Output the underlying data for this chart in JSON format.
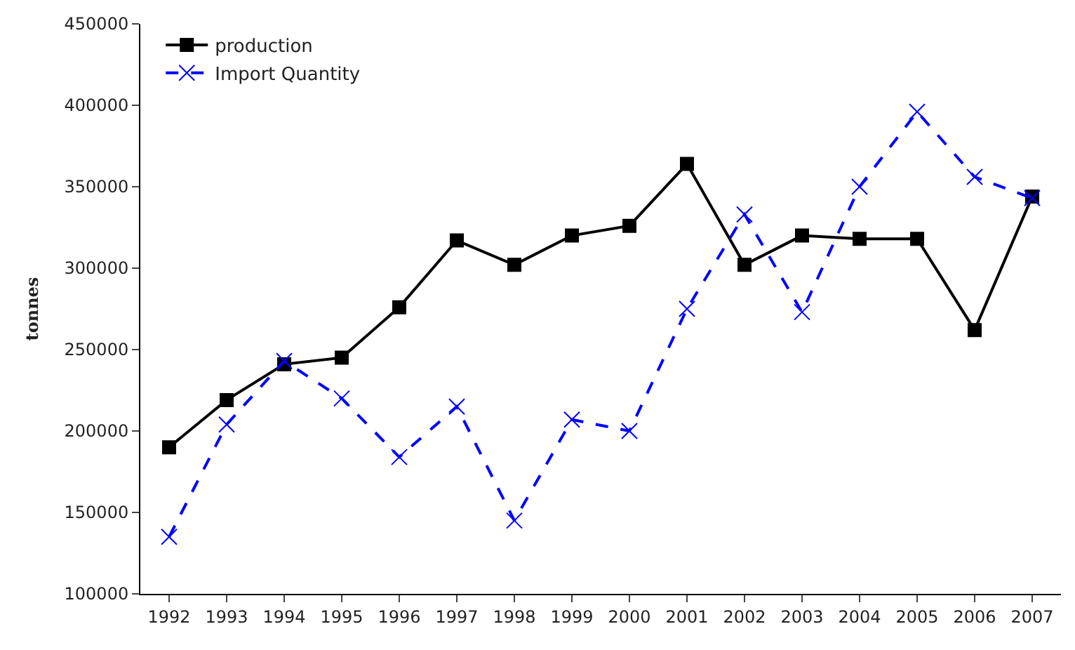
{
  "chart_data": {
    "type": "line",
    "categories": [
      "1992",
      "1993",
      "1994",
      "1995",
      "1996",
      "1997",
      "1998",
      "1999",
      "2000",
      "2001",
      "2002",
      "2003",
      "2004",
      "2005",
      "2006",
      "2007"
    ],
    "series": [
      {
        "name": "production",
        "color": "#000000",
        "marker": "square",
        "line_style": "solid",
        "values": [
          190000,
          219000,
          241000,
          245000,
          276000,
          317000,
          302000,
          320000,
          326000,
          364000,
          302000,
          320000,
          318000,
          318000,
          262000,
          344000
        ]
      },
      {
        "name": "Import Quantity",
        "color": "#0000ff",
        "marker": "cross",
        "line_style": "dashed",
        "values": [
          135000,
          204000,
          243000,
          220000,
          184000,
          215000,
          145000,
          207000,
          200000,
          275000,
          333000,
          273000,
          350000,
          396000,
          356000,
          343000
        ]
      }
    ],
    "ylabel": "tonnes",
    "ylim": [
      100000,
      450000
    ],
    "yticks": [
      100000,
      150000,
      200000,
      250000,
      300000,
      350000,
      400000,
      450000
    ],
    "grid": false,
    "legend": "top left"
  }
}
